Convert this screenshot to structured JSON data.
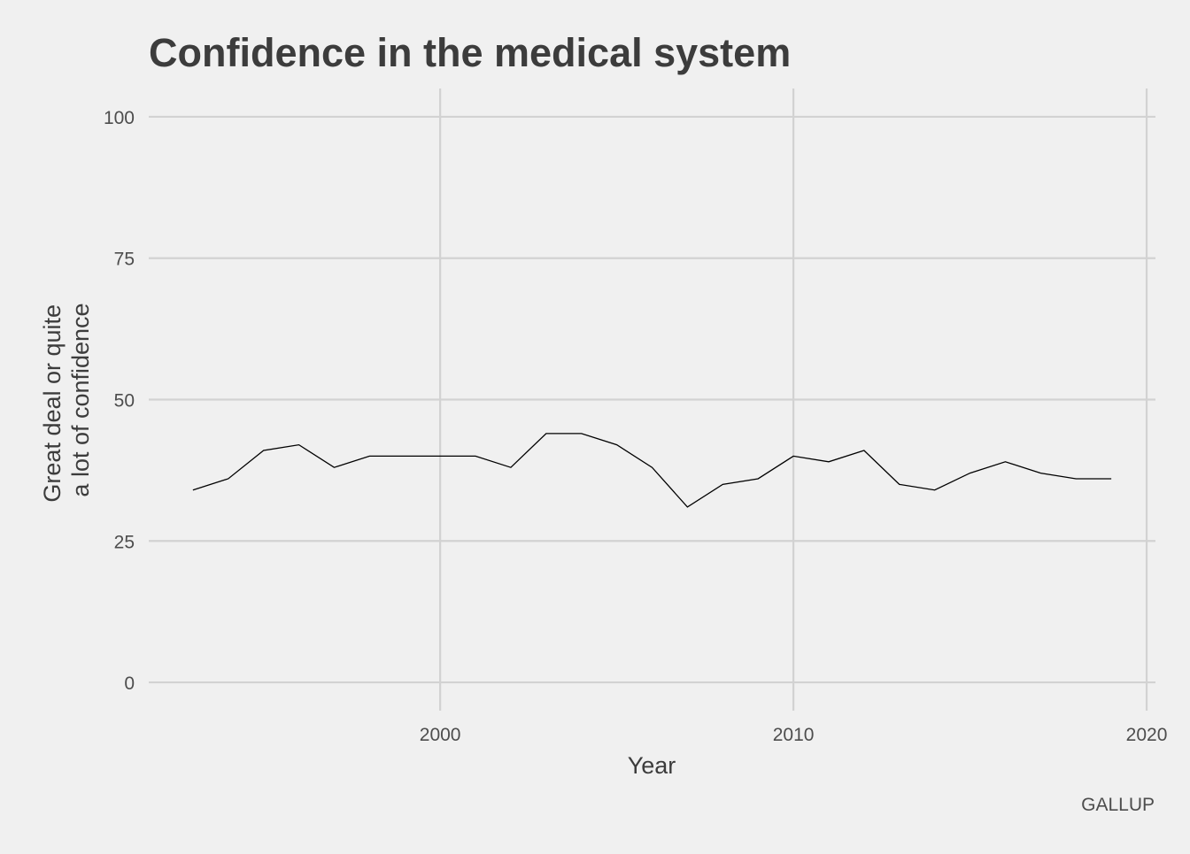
{
  "chart_data": {
    "type": "line",
    "title": "Confidence in the medical system",
    "xlabel": "Year",
    "ylabel_lines": [
      "Great deal or quite",
      "a lot of confidence"
    ],
    "caption": "GALLUP",
    "xlim": [
      1991.75,
      2020.25
    ],
    "ylim": [
      -5,
      105
    ],
    "x_ticks": [
      2000,
      2010,
      2020
    ],
    "y_ticks": [
      0,
      25,
      50,
      75,
      100
    ],
    "x_tick_labels": [
      "2000",
      "2010",
      "2020"
    ],
    "y_tick_labels": [
      "0",
      "25",
      "50",
      "75",
      "100"
    ],
    "grid": true,
    "legend": "none",
    "line_color": "#000000",
    "background_color": "#f0f0f0",
    "grid_color": "#d2d2d2",
    "x": [
      1993,
      1994,
      1995,
      1996,
      1997,
      1998,
      1999,
      2000,
      2001,
      2002,
      2003,
      2004,
      2005,
      2006,
      2007,
      2008,
      2009,
      2010,
      2011,
      2012,
      2013,
      2014,
      2015,
      2016,
      2017,
      2018,
      2019
    ],
    "y": [
      34,
      36,
      41,
      42,
      38,
      40,
      40,
      40,
      40,
      38,
      44,
      44,
      42,
      38,
      31,
      35,
      36,
      40,
      39,
      41,
      35,
      34,
      37,
      39,
      37,
      36,
      36
    ]
  }
}
